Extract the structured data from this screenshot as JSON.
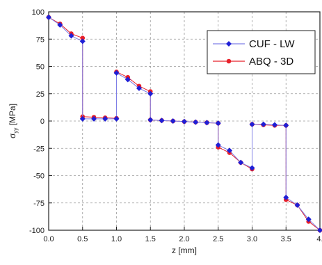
{
  "chart_data": {
    "type": "line",
    "xlabel": "z [mm]",
    "ylabel": {
      "main": "σ",
      "sub": "yy",
      "unit": " [MPa]"
    },
    "xlim": [
      0,
      4
    ],
    "ylim": [
      -100,
      100
    ],
    "x_ticks": [
      0,
      0.5,
      1,
      1.5,
      2,
      2.5,
      3,
      3.5,
      4
    ],
    "x_tick_labels": [
      "0.0",
      "0.5",
      "1.0",
      "1.5",
      "2.0",
      "2.5",
      "3.0",
      "3.5",
      "4."
    ],
    "y_ticks": [
      100,
      75,
      50,
      25,
      0,
      -25,
      -50,
      -75,
      -100
    ],
    "y_tick_labels": [
      "100",
      "75",
      "50",
      "25",
      "0",
      "-25",
      "-50",
      "-75",
      "-100"
    ],
    "grid": true,
    "legend_position": "top-right",
    "series": [
      {
        "name": "CUF - LW",
        "color": "#1f1fd6",
        "line_color": "#7f7fe6",
        "marker": "diamond",
        "x": [
          0,
          0.167,
          0.333,
          0.5,
          0.5,
          0.667,
          0.833,
          1.0,
          1.0,
          1.167,
          1.333,
          1.5,
          1.5,
          1.667,
          1.833,
          2.0,
          2.167,
          2.333,
          2.5,
          2.5,
          2.667,
          2.833,
          3.0,
          3.0,
          3.167,
          3.333,
          3.5,
          3.5,
          3.667,
          3.833,
          4.0
        ],
        "y": [
          95,
          88,
          78,
          73,
          2,
          2,
          2,
          2,
          44,
          38,
          30,
          25,
          1,
          0.5,
          0,
          -0.5,
          -1,
          -1.5,
          -2,
          -22,
          -27,
          -38,
          -43,
          -3,
          -3,
          -3.5,
          -4,
          -70,
          -77,
          -90,
          -100
        ]
      },
      {
        "name": "ABQ - 3D",
        "color": "#e8202a",
        "line_color": "#e8202a",
        "marker": "circle",
        "x": [
          0,
          0.167,
          0.333,
          0.5,
          0.5,
          0.667,
          0.833,
          1.0,
          1.0,
          1.167,
          1.333,
          1.5,
          1.5,
          1.667,
          1.833,
          2.0,
          2.167,
          2.333,
          2.5,
          2.5,
          2.667,
          2.833,
          3.0,
          3.0,
          3.167,
          3.333,
          3.5,
          3.5,
          3.667,
          3.833,
          4.0
        ],
        "y": [
          95,
          89,
          80,
          76,
          4,
          3.5,
          3,
          2.5,
          45,
          40,
          32,
          27,
          1,
          0.5,
          0,
          -0.5,
          -1,
          -1.5,
          -2,
          -24,
          -29,
          -38,
          -44,
          -3,
          -3.5,
          -4,
          -4,
          -72,
          -77,
          -92,
          -100
        ]
      }
    ]
  }
}
